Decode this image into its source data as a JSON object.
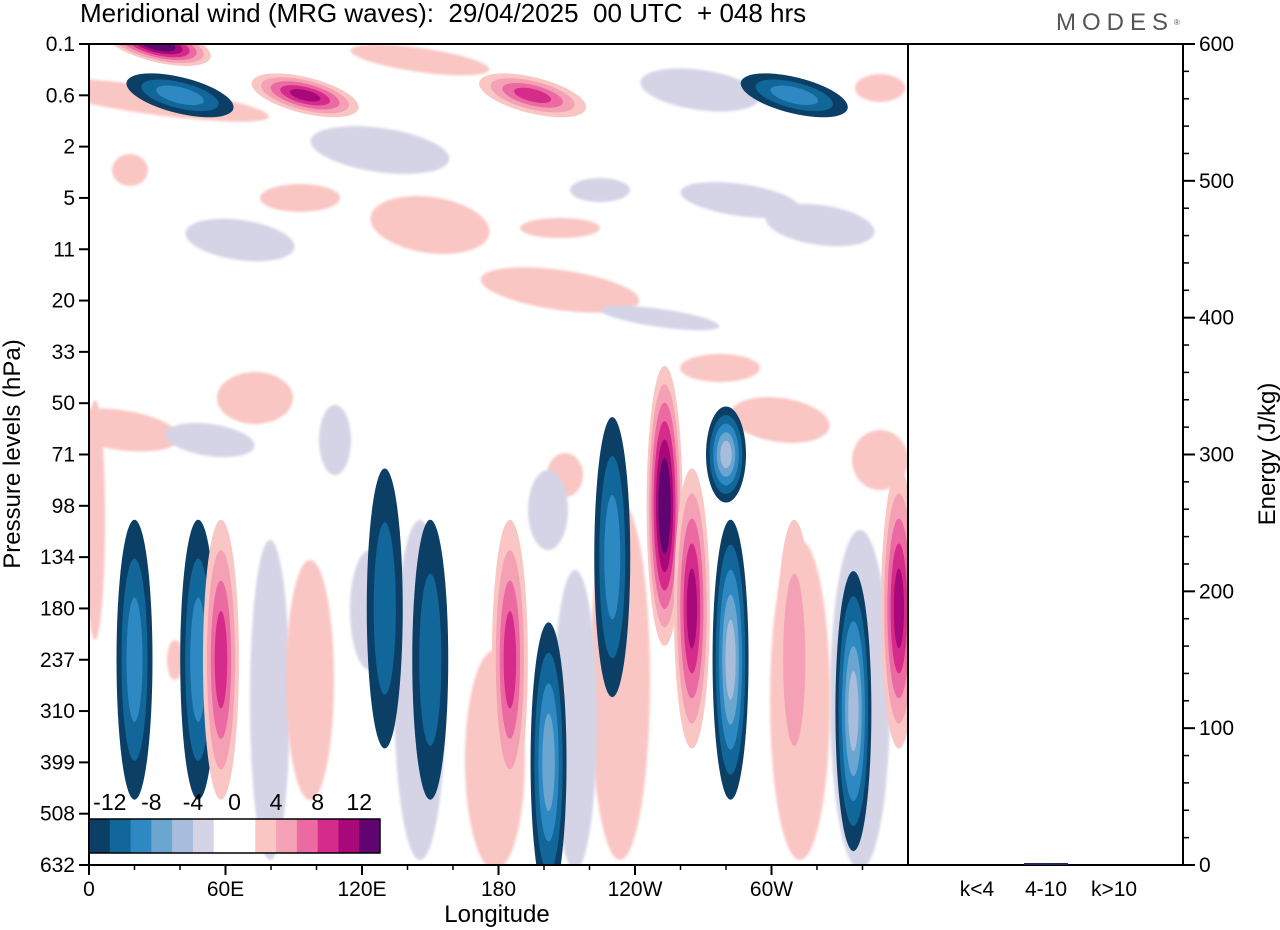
{
  "title": "Meridional wind (MRG waves):  29/04/2025  00 UTC  + 048 hrs",
  "brand": "MODES",
  "brand_mark": "®",
  "colors": {
    "neg": [
      "#0c3f66",
      "#11679a",
      "#2e88c2",
      "#6aa6cf",
      "#a7bddb",
      "#d4d4e6"
    ],
    "pos": [
      "#f9c6c3",
      "#f5a1b5",
      "#ec6aa2",
      "#d52b8a",
      "#a8087a",
      "#5f0470"
    ],
    "energy_bar": "#1f2a5a"
  },
  "chart_data": [
    {
      "type": "heatmap",
      "title": "Meridional wind (MRG waves):  29/04/2025  00 UTC  + 048 hrs",
      "xlabel": "Longitude",
      "ylabel": "Pressure levels (hPa)",
      "x_ticks": [
        "0",
        "60E",
        "120E",
        "180",
        "120W",
        "60W"
      ],
      "x_tick_values": [
        0,
        60,
        120,
        180,
        240,
        300
      ],
      "xlim": [
        0,
        360
      ],
      "y_ticks": [
        "0.1",
        "0.6",
        "2",
        "5",
        "11",
        "20",
        "33",
        "50",
        "71",
        "98",
        "134",
        "180",
        "237",
        "310",
        "399",
        "508",
        "632"
      ],
      "y_scale": "model levels (top 0.1 hPa, bottom 632 hPa)",
      "colorbar": {
        "labels": [
          "-12",
          "-8",
          "-4",
          "0",
          "4",
          "8",
          "12"
        ],
        "levels": [
          -14,
          -12,
          -10,
          -8,
          -6,
          -4,
          -2,
          2,
          4,
          6,
          8,
          10,
          12,
          14
        ],
        "placement": "bottom-left"
      },
      "features": [
        {
          "lon": 20,
          "level": "237",
          "value": -6
        },
        {
          "lon": 48,
          "level": "237",
          "value": -6
        },
        {
          "lon": 58,
          "level": "237",
          "value": 9
        },
        {
          "lon": 130,
          "level": "180",
          "value": -5
        },
        {
          "lon": 150,
          "level": "237",
          "value": -5
        },
        {
          "lon": 185,
          "level": "237",
          "value": 8
        },
        {
          "lon": 202,
          "level": "399",
          "value": -9
        },
        {
          "lon": 230,
          "level": "134",
          "value": -7
        },
        {
          "lon": 253,
          "level": "98",
          "value": 14
        },
        {
          "lon": 265,
          "level": "180",
          "value": 10
        },
        {
          "lon": 280,
          "level": "71",
          "value": -11
        },
        {
          "lon": 282,
          "level": "237",
          "value": -10
        },
        {
          "lon": 310,
          "level": "237",
          "value": 5
        },
        {
          "lon": 336,
          "level": "310",
          "value": -11
        },
        {
          "lon": 356,
          "level": "180",
          "value": 11
        },
        {
          "lon": 30,
          "level": "0.1",
          "value": 14
        },
        {
          "lon": 95,
          "level": "0.6",
          "value": 10
        },
        {
          "lon": 40,
          "level": "0.6",
          "value": -7
        },
        {
          "lon": 195,
          "level": "0.6",
          "value": 9
        },
        {
          "lon": 310,
          "level": "0.6",
          "value": -7
        }
      ]
    },
    {
      "type": "bar",
      "xlabel": "",
      "ylabel": "Energy (J/kg)",
      "categories": [
        "k<4",
        "4-10",
        "k>10"
      ],
      "values": [
        0,
        1,
        0
      ],
      "ylim": [
        0,
        600
      ],
      "y_ticks": [
        "0",
        "100",
        "200",
        "300",
        "400",
        "500",
        "600"
      ]
    }
  ]
}
